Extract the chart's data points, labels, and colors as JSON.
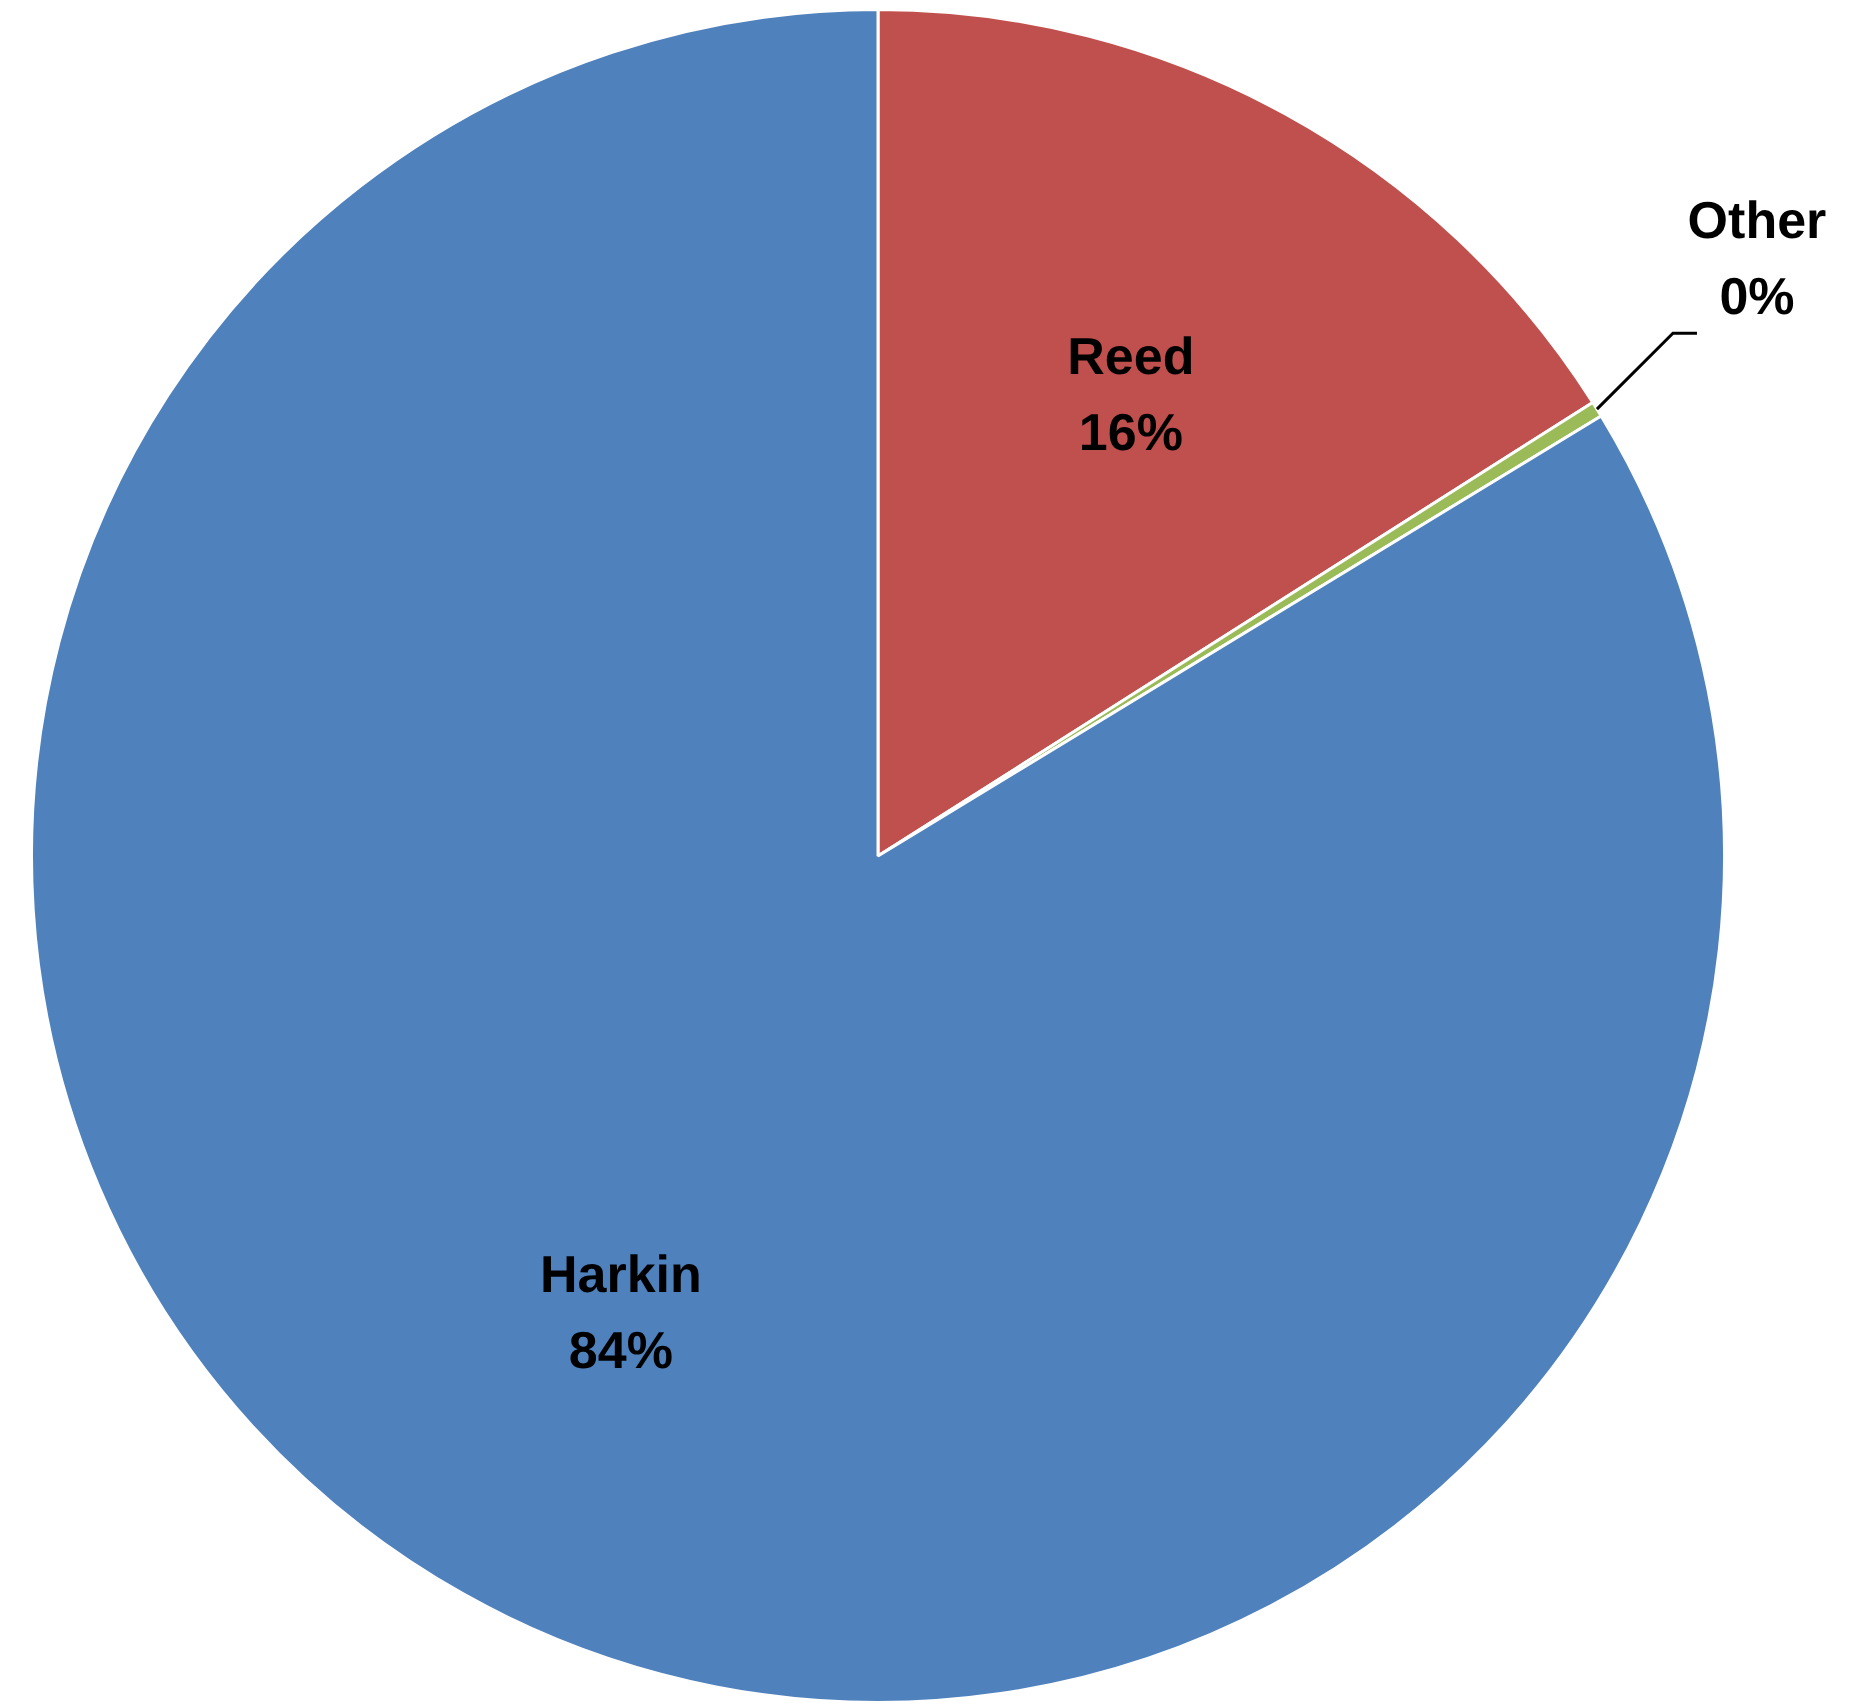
{
  "chart_data": {
    "type": "pie",
    "categories": [
      "Reed",
      "Other",
      "Harkin"
    ],
    "values": [
      16,
      0.3,
      83.7
    ],
    "value_labels": [
      "16%",
      "0%",
      "84%"
    ],
    "colors": [
      "#c0504d",
      "#9bbb59",
      "#4f81bd"
    ],
    "legend": false
  }
}
